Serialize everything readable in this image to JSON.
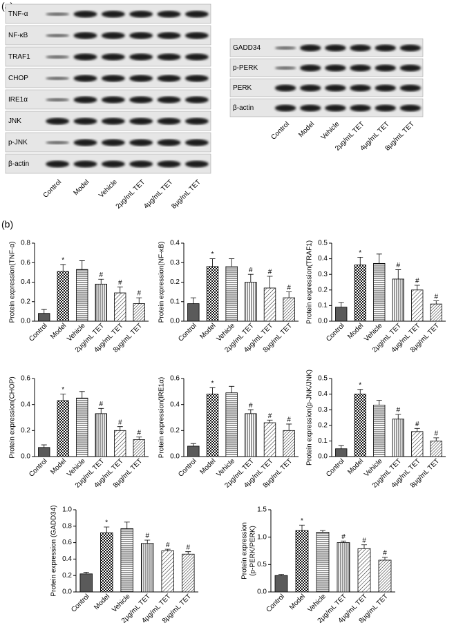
{
  "panel_a_label": "(a)",
  "panel_b_label": "(b)",
  "blots": [
    {
      "rows": [
        "TNF-α",
        "NF-κB",
        "TRAF1",
        "CHOP",
        "IRE1α",
        "JNK",
        "p-JNK",
        "β-actin"
      ],
      "lanes": [
        "Control",
        "Model",
        "Vehicle",
        "2μg/mL TET",
        "4μg/mL TET",
        "8μg/mL TET"
      ]
    },
    {
      "rows": [
        "GADD34",
        "p-PERK",
        "PERK",
        "β-actin"
      ],
      "lanes": [
        "Control",
        "Model",
        "Vehicle",
        "2μg/mL TET",
        "4μg/mL TET",
        "8μg/mL TET"
      ]
    }
  ],
  "chart_data": [
    {
      "type": "bar",
      "y_label": [
        "Protein expression(TNF-α)"
      ],
      "categories": [
        "Control",
        "Model",
        "Vehicle",
        "2μg/mL TET",
        "4μg/mL TET",
        "8μg/mL TET"
      ],
      "values": [
        0.08,
        0.51,
        0.53,
        0.38,
        0.29,
        0.18
      ],
      "errors": [
        0.04,
        0.07,
        0.09,
        0.05,
        0.06,
        0.06
      ],
      "markers": [
        null,
        "*",
        null,
        "#",
        "#",
        "#"
      ],
      "bar_patterns": [
        "solid",
        "checker",
        "horizontal",
        "vertical",
        "diagonal",
        "diagonal-dense"
      ],
      "ylim": [
        0,
        0.8
      ],
      "yticks": [
        {
          "value": 0,
          "label": "0.0"
        },
        {
          "value": 0.2,
          "label": "0.2"
        },
        {
          "value": 0.4,
          "label": "0.4"
        },
        {
          "value": 0.6,
          "label": "0.6"
        },
        {
          "value": 0.8,
          "label": "0.8"
        }
      ]
    },
    {
      "type": "bar",
      "y_label": [
        "Protein expression(NF-κB)"
      ],
      "categories": [
        "Control",
        "Model",
        "Vehicle",
        "2μg/mL TET",
        "4μg/mL TET",
        "8μg/mL TET"
      ],
      "values": [
        0.09,
        0.28,
        0.28,
        0.2,
        0.17,
        0.12
      ],
      "errors": [
        0.03,
        0.04,
        0.04,
        0.04,
        0.06,
        0.03
      ],
      "markers": [
        null,
        "*",
        null,
        "#",
        "#",
        "#"
      ],
      "bar_patterns": [
        "solid",
        "checker",
        "horizontal",
        "vertical",
        "diagonal",
        "diagonal-dense"
      ],
      "ylim": [
        0,
        0.4
      ],
      "yticks": [
        {
          "value": 0,
          "label": "0.0"
        },
        0.1,
        0.2,
        0.3,
        0.4
      ]
    },
    {
      "type": "bar",
      "y_label": [
        "Protein expression(TRAF1)"
      ],
      "categories": [
        "Control",
        "Model",
        "Vehicle",
        "2μg/mL TET",
        "4μg/mL TET",
        "8μg/mL TET"
      ],
      "values": [
        0.09,
        0.36,
        0.37,
        0.27,
        0.2,
        0.11
      ],
      "errors": [
        0.03,
        0.05,
        0.06,
        0.06,
        0.03,
        0.02
      ],
      "markers": [
        null,
        "*",
        null,
        "#",
        "#",
        "#"
      ],
      "bar_patterns": [
        "solid",
        "checker",
        "horizontal",
        "vertical",
        "diagonal",
        "diagonal-dense"
      ],
      "ylim": [
        0,
        0.5
      ],
      "yticks": [
        {
          "value": 0,
          "label": "0.0"
        },
        0.1,
        0.2,
        0.3,
        0.4,
        0.5
      ]
    },
    {
      "type": "bar",
      "y_label": [
        "Protein expression(CHOP)"
      ],
      "categories": [
        "Control",
        "Model",
        "Vehicle",
        "2μg/mL TET",
        "4μg/mL TET",
        "8μg/mL TET"
      ],
      "values": [
        0.07,
        0.43,
        0.45,
        0.33,
        0.2,
        0.13
      ],
      "errors": [
        0.02,
        0.05,
        0.05,
        0.04,
        0.03,
        0.02
      ],
      "markers": [
        null,
        "*",
        null,
        "#",
        "#",
        "#"
      ],
      "bar_patterns": [
        "solid",
        "checker",
        "horizontal",
        "vertical",
        "diagonal",
        "diagonal-dense"
      ],
      "ylim": [
        0,
        0.6
      ],
      "yticks": [
        {
          "value": 0,
          "label": "0.0"
        },
        0.2,
        0.4,
        0.6
      ]
    },
    {
      "type": "bar",
      "y_label": [
        "Protein expression(IRE1α)"
      ],
      "categories": [
        "Control",
        "Model",
        "Vehicle",
        "2μg/mL TET",
        "4μg/mL TET",
        "8μg/mL TET"
      ],
      "values": [
        0.08,
        0.48,
        0.49,
        0.33,
        0.26,
        0.2
      ],
      "errors": [
        0.02,
        0.05,
        0.05,
        0.03,
        0.02,
        0.05
      ],
      "markers": [
        null,
        "*",
        null,
        "#",
        "#",
        "#"
      ],
      "bar_patterns": [
        "solid",
        "checker",
        "horizontal",
        "vertical",
        "diagonal",
        "diagonal-dense"
      ],
      "ylim": [
        0,
        0.6
      ],
      "yticks": [
        {
          "value": 0,
          "label": "0.0"
        },
        0.2,
        0.4,
        0.6
      ]
    },
    {
      "type": "bar",
      "y_label": [
        "Protein expression(p-JNK/JNK)"
      ],
      "categories": [
        "Control",
        "Model",
        "Vehicle",
        "2μg/mL TET",
        "4μg/mL TET",
        "8μg/mL TET"
      ],
      "values": [
        0.05,
        0.4,
        0.33,
        0.24,
        0.16,
        0.1
      ],
      "errors": [
        0.02,
        0.03,
        0.03,
        0.03,
        0.02,
        0.02
      ],
      "markers": [
        null,
        "*",
        null,
        "#",
        "#",
        "#"
      ],
      "bar_patterns": [
        "solid",
        "checker",
        "horizontal",
        "vertical",
        "diagonal",
        "diagonal-dense"
      ],
      "ylim": [
        0,
        0.5
      ],
      "yticks": [
        {
          "value": 0,
          "label": "0.0"
        },
        0.1,
        0.2,
        0.3,
        0.4,
        0.5
      ]
    },
    {
      "type": "bar",
      "y_label": [
        "Protein expression (GADD34)"
      ],
      "categories": [
        "Control",
        "Model",
        "Vehicle",
        "2μg/mL TET",
        "4μg/mL TET",
        "8μg/mL TET"
      ],
      "values": [
        0.22,
        0.72,
        0.77,
        0.59,
        0.5,
        0.46
      ],
      "errors": [
        0.02,
        0.07,
        0.08,
        0.04,
        0.02,
        0.03
      ],
      "markers": [
        null,
        "*",
        null,
        "#",
        "#",
        "#"
      ],
      "bar_patterns": [
        "solid",
        "checker",
        "horizontal",
        "vertical",
        "diagonal",
        "diagonal-dense"
      ],
      "ylim": [
        0,
        1
      ],
      "yticks": [
        {
          "value": 0,
          "label": "0.0"
        },
        0.2,
        0.4,
        0.6,
        0.8,
        {
          "value": 1,
          "label": "1.0"
        }
      ]
    },
    {
      "type": "bar",
      "y_label": [
        "Protein expression",
        "(p-PERK/PERK)"
      ],
      "categories": [
        "Control",
        "Model",
        "Vehicle",
        "2μg/mL TET",
        "4μg/mL TET",
        "8μg/mL TET"
      ],
      "values": [
        0.3,
        1.12,
        1.09,
        0.9,
        0.79,
        0.58
      ],
      "errors": [
        0.02,
        0.1,
        0.03,
        0.03,
        0.07,
        0.05
      ],
      "markers": [
        null,
        "*",
        null,
        "#",
        "#",
        "#"
      ],
      "bar_patterns": [
        "solid",
        "checker",
        "horizontal",
        "vertical",
        "diagonal",
        "diagonal-dense"
      ],
      "ylim": [
        0,
        1.5
      ],
      "yticks": [
        {
          "value": 0,
          "label": "0.0"
        },
        0.5,
        {
          "value": 1,
          "label": "1.0"
        },
        1.5
      ]
    }
  ]
}
